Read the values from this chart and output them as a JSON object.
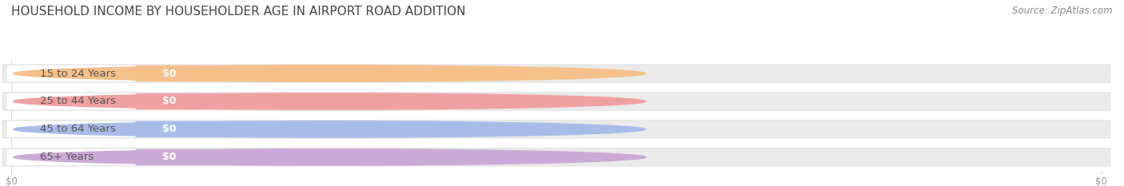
{
  "title": "HOUSEHOLD INCOME BY HOUSEHOLDER AGE IN AIRPORT ROAD ADDITION",
  "source_text": "Source: ZipAtlas.com",
  "categories": [
    "15 to 24 Years",
    "25 to 44 Years",
    "45 to 64 Years",
    "65+ Years"
  ],
  "values": [
    0,
    0,
    0,
    0
  ],
  "bar_colors": [
    "#f5c08a",
    "#f0a0a0",
    "#a8bce8",
    "#ccaad8"
  ],
  "background_color": "#ffffff",
  "bar_bg_color": "#ebebeb",
  "bar_border_color": "#d8d8d8",
  "title_fontsize": 11,
  "label_fontsize": 9.5,
  "source_fontsize": 8.5,
  "tick_label_color": "#999999",
  "title_color": "#444444",
  "source_color": "#888888",
  "category_text_color": "#555555",
  "value_text_color": "#ffffff"
}
